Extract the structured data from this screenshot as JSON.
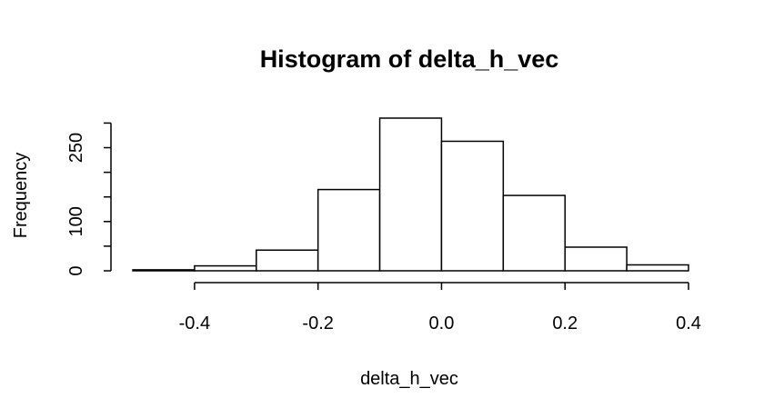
{
  "chart_data": {
    "type": "bar",
    "title": "Histogram of delta_h_vec",
    "xlabel": "delta_h_vec",
    "ylabel": "Frequency",
    "bins": [
      {
        "start": -0.5,
        "end": -0.4,
        "count": 2
      },
      {
        "start": -0.4,
        "end": -0.3,
        "count": 10
      },
      {
        "start": -0.3,
        "end": -0.2,
        "count": 42
      },
      {
        "start": -0.2,
        "end": -0.1,
        "count": 165
      },
      {
        "start": -0.1,
        "end": 0.0,
        "count": 310
      },
      {
        "start": 0.0,
        "end": 0.1,
        "count": 263
      },
      {
        "start": 0.1,
        "end": 0.2,
        "count": 153
      },
      {
        "start": 0.2,
        "end": 0.3,
        "count": 48
      },
      {
        "start": 0.3,
        "end": 0.4,
        "count": 12
      }
    ],
    "xlim": [
      -0.5,
      0.4
    ],
    "ylim": [
      0,
      310
    ],
    "x_ticks": [
      -0.4,
      -0.2,
      0.0,
      0.2,
      0.4
    ],
    "x_tick_labels": [
      "-0.4",
      "-0.2",
      "0.0",
      "0.2",
      "0.4"
    ],
    "y_ticks": [
      0,
      50,
      100,
      150,
      200,
      250,
      300
    ],
    "y_tick_labels": [
      "0",
      "",
      "100",
      "",
      "",
      "250",
      ""
    ],
    "grid": false,
    "colors": {
      "bar_fill": "#ffffff",
      "bar_stroke": "#000000",
      "axis": "#000000"
    }
  }
}
